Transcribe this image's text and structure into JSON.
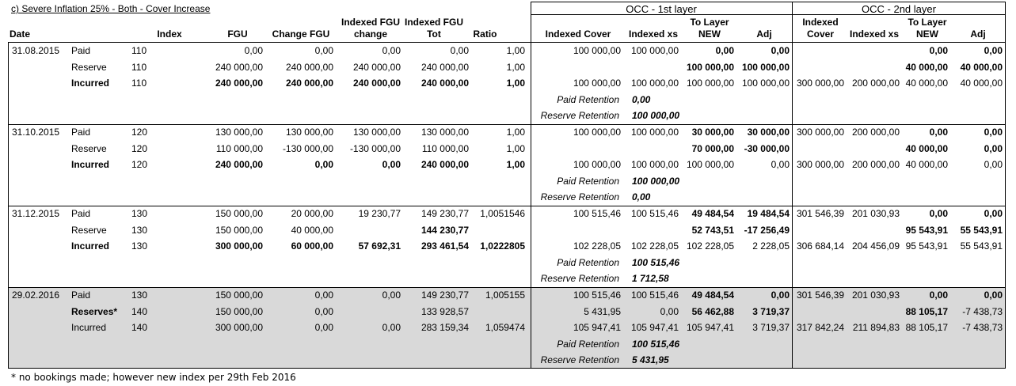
{
  "title": "c) Severe Inflation 25% - Both - Cover Increase",
  "groups": [
    "OCC - 1st layer",
    "OCC - 2nd layer"
  ],
  "headers": [
    "Date",
    "Index",
    "FGU",
    "Change FGU",
    "Indexed FGU change",
    "Indexed FGU Tot",
    "Ratio",
    "Indexed Cover",
    "Indexed xs",
    "To Layer NEW",
    "Adj",
    "Indexed Cover",
    "Indexed xs",
    "To Layer NEW",
    "Adj"
  ],
  "blocks": [
    {
      "date": "31.08.2015",
      "rows": [
        [
          "Paid",
          "110",
          "0,00",
          "0,00",
          "0,00",
          "0,00",
          "1,00",
          "100 000,00",
          "100 000,00",
          "0,00",
          "0,00",
          null,
          null,
          "0,00",
          "0,00"
        ],
        [
          "Reserve",
          "110",
          "240 000,00",
          "240 000,00",
          "240 000,00",
          "240 000,00",
          "1,00",
          null,
          null,
          "100 000,00",
          "100 000,00",
          null,
          null,
          "40 000,00",
          "40 000,00"
        ],
        [
          "Incurred",
          "110",
          "240 000,00",
          "240 000,00",
          "240 000,00",
          "240 000,00",
          "1,00",
          "100 000,00",
          "100 000,00",
          "100 000,00",
          "100 000,00",
          "300 000,00",
          "200 000,00",
          "40 000,00",
          "40 000,00"
        ]
      ],
      "retentions": [
        {
          "label": "Paid Retention",
          "value": "0,00"
        },
        {
          "label": "Reserve Retention",
          "value": "100 000,00"
        }
      ]
    },
    {
      "date": "31.10.2015",
      "rows": [
        [
          "Paid",
          "120",
          "130 000,00",
          "130 000,00",
          "130 000,00",
          "130 000,00",
          "1,00",
          "100 000,00",
          "100 000,00",
          "30 000,00",
          "30 000,00",
          "300 000,00",
          "200 000,00",
          "0,00",
          "0,00"
        ],
        [
          "Reserve",
          "120",
          "110 000,00",
          "-130 000,00",
          "-130 000,00",
          "110 000,00",
          "1,00",
          null,
          null,
          "70 000,00",
          "-30 000,00",
          null,
          null,
          "40 000,00",
          "0,00"
        ],
        [
          "Incurred",
          "120",
          "240 000,00",
          "0,00",
          "0,00",
          "240 000,00",
          "1,00",
          "100 000,00",
          "100 000,00",
          "100 000,00",
          "0,00",
          "300 000,00",
          "200 000,00",
          "40 000,00",
          "0,00"
        ]
      ],
      "retentions": [
        {
          "label": "Paid Retention",
          "value": "100 000,00"
        },
        {
          "label": "Reserve Retention",
          "value": "0,00"
        }
      ]
    },
    {
      "date": "31.12.2015",
      "rows": [
        [
          "Paid",
          "130",
          "150 000,00",
          "20 000,00",
          "19 230,77",
          "149 230,77",
          "1,0051546",
          "100 515,46",
          "100 515,46",
          "49 484,54",
          "19 484,54",
          "301 546,39",
          "201 030,93",
          "0,00",
          "0,00"
        ],
        [
          "Reserve",
          "130",
          "150 000,00",
          "40 000,00",
          null,
          "144 230,77",
          null,
          null,
          null,
          "52 743,51",
          "-17 256,49",
          null,
          null,
          "95 543,91",
          "55 543,91"
        ],
        [
          "Incurred",
          "130",
          "300 000,00",
          "60 000,00",
          "57 692,31",
          "293 461,54",
          "1,0222805",
          "102 228,05",
          "102 228,05",
          "102 228,05",
          "2 228,05",
          "306 684,14",
          "204 456,09",
          "95 543,91",
          "55 543,91"
        ]
      ],
      "retentions": [
        {
          "label": "Paid Retention",
          "value": "100 515,46"
        },
        {
          "label": "Reserve Retention",
          "value": "1 712,58"
        }
      ]
    },
    {
      "date": "29.02.2016",
      "rows": [
        [
          "Paid",
          "130",
          "150 000,00",
          "0,00",
          "0,00",
          "149 230,77",
          "1,005155",
          "100 515,46",
          "100 515,46",
          "49 484,54",
          "0,00",
          "301 546,39",
          "201 030,93",
          "0,00",
          "0,00"
        ],
        [
          "Reserves*",
          "140",
          "150 000,00",
          "0,00",
          null,
          "133 928,57",
          null,
          "5 431,95",
          "0,00",
          "56 462,88",
          "3 719,37",
          null,
          null,
          "88 105,17",
          "-7 438,73"
        ],
        [
          "Incurred",
          "140",
          "300 000,00",
          "0,00",
          "0,00",
          "283 159,34",
          "1,059474",
          "105 947,41",
          "105 947,41",
          "105 947,41",
          "3 719,37",
          "317 842,24",
          "211 894,83",
          "88 105,17",
          "-7 438,73"
        ]
      ],
      "retentions": [
        {
          "label": "Paid Retention",
          "value": "100 515,46"
        },
        {
          "label": "Reserve Retention",
          "value": "5 431,95"
        }
      ]
    }
  ],
  "footnote": "* no bookings made; however new index per 29th Feb 2016"
}
